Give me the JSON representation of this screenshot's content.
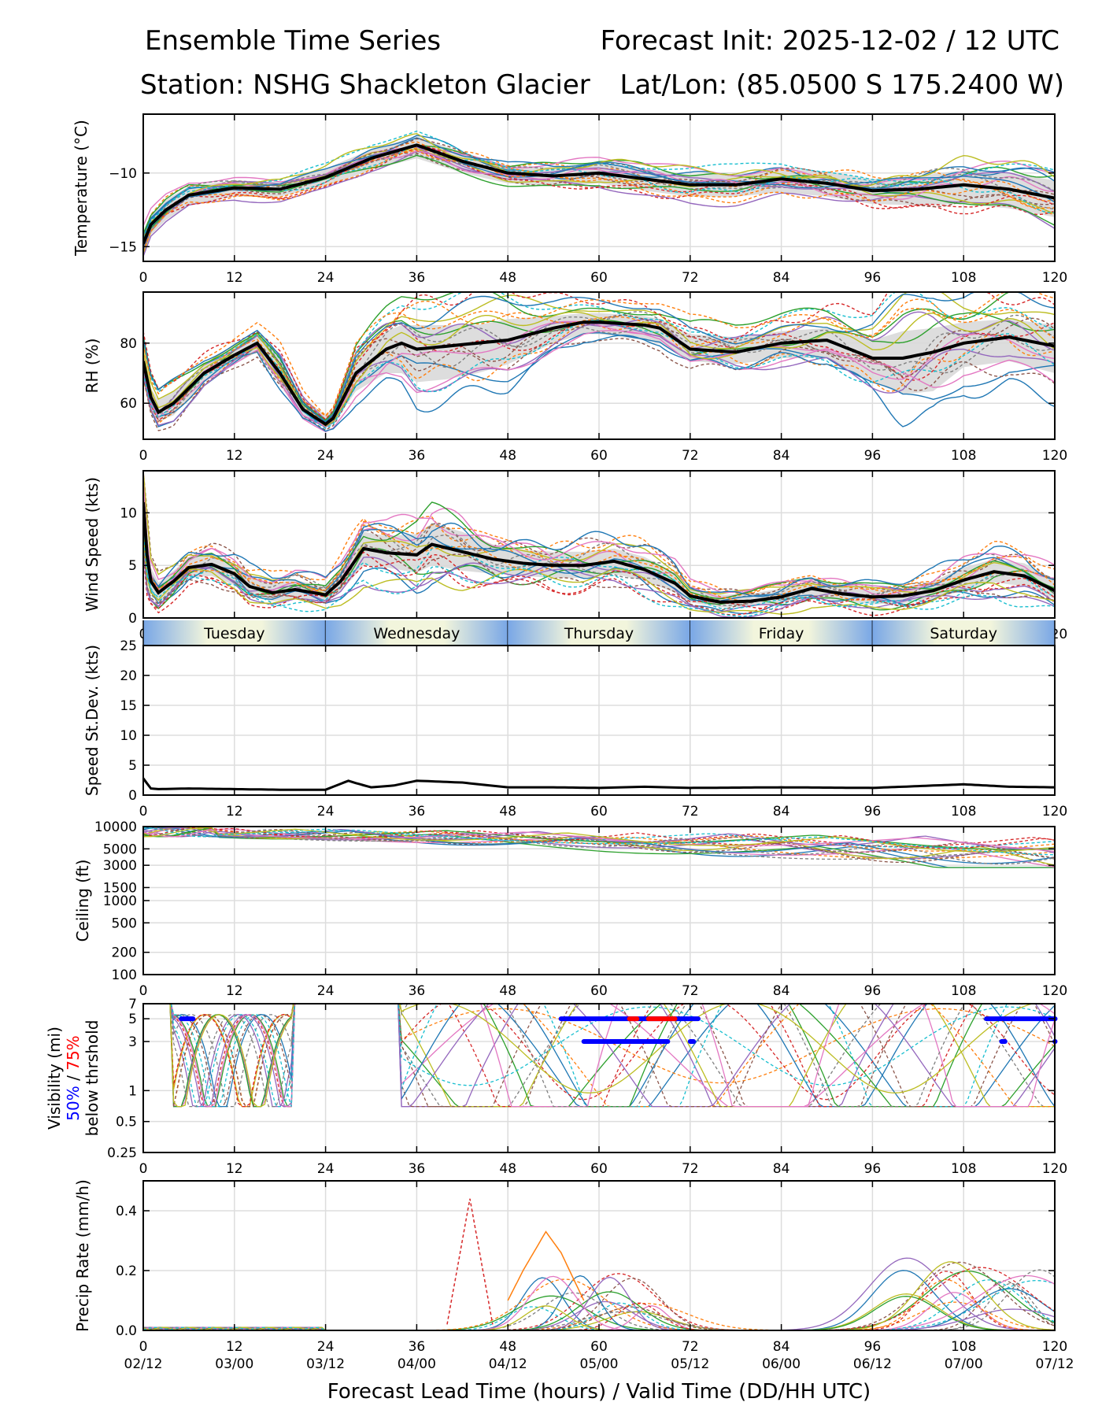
{
  "header": {
    "title_left": "Ensemble Time Series",
    "title_right": "Forecast Init: 2025-12-02 / 12 UTC",
    "station": "Station: NSHG Shackleton Glacier",
    "latlon": "Lat/Lon: (85.0500 S 175.2400 W)"
  },
  "colors": {
    "mean_line": "#000000",
    "spread_fill": "#d9d9d9",
    "grid": "#dddddd",
    "day_band_light": "#f2f5dc",
    "day_band_dark": "#79a7e6",
    "vis_50pct": "#0000ff",
    "vis_75pct": "#ff0000",
    "members": [
      "#1f77b4",
      "#ff7f0e",
      "#2ca02c",
      "#d62728",
      "#9467bd",
      "#8c564b",
      "#e377c2",
      "#7f7f7f",
      "#bcbd22",
      "#17becf"
    ]
  },
  "chart_data": [
    {
      "type": "line",
      "panel": "temperature",
      "ylabel": "Temperature (°C)",
      "ylim": [
        -16,
        -6
      ],
      "yticks": [
        -15,
        -10
      ],
      "x_hours": [
        0,
        1,
        3,
        6,
        12,
        18,
        24,
        30,
        36,
        42,
        48,
        54,
        60,
        66,
        72,
        78,
        84,
        90,
        96,
        102,
        108,
        114,
        120
      ],
      "ensemble_mean": [
        -14.8,
        -13.5,
        -12.5,
        -11.5,
        -11.0,
        -11.1,
        -10.3,
        -9.0,
        -8.1,
        -9.2,
        -10.0,
        -10.2,
        -10.0,
        -10.4,
        -10.8,
        -10.8,
        -10.4,
        -10.7,
        -11.2,
        -11.1,
        -10.8,
        -11.1,
        -11.7
      ],
      "spread_low": [
        -15.6,
        -14.2,
        -13.2,
        -12.2,
        -11.6,
        -11.6,
        -10.9,
        -9.8,
        -9.0,
        -10.0,
        -10.7,
        -10.9,
        -10.7,
        -11.2,
        -11.6,
        -11.6,
        -11.3,
        -11.6,
        -12.1,
        -12.2,
        -12.1,
        -12.4,
        -13.0
      ],
      "spread_high": [
        -14.0,
        -12.8,
        -11.8,
        -10.9,
        -10.5,
        -10.6,
        -9.7,
        -8.4,
        -7.5,
        -8.6,
        -9.5,
        -9.6,
        -9.3,
        -9.7,
        -10.1,
        -10.1,
        -9.7,
        -9.9,
        -10.4,
        -10.2,
        -9.8,
        -10.0,
        -10.5
      ]
    },
    {
      "type": "line",
      "panel": "relative_humidity",
      "ylabel": "RH (%)",
      "ylim": [
        48,
        97
      ],
      "yticks": [
        60,
        80
      ],
      "x_hours": [
        0,
        1,
        2,
        4,
        8,
        12,
        15,
        18,
        21,
        24,
        25,
        28,
        32,
        34,
        36,
        40,
        44,
        48,
        54,
        58,
        60,
        66,
        68,
        72,
        78,
        84,
        90,
        96,
        100,
        104,
        108,
        114,
        120
      ],
      "ensemble_mean": [
        74,
        62,
        57,
        60,
        70,
        76,
        80,
        70,
        58,
        53,
        55,
        70,
        78,
        80,
        78,
        79,
        80,
        81,
        85,
        87,
        87,
        86,
        85,
        78,
        77,
        80,
        81,
        75,
        75,
        77,
        80,
        82,
        79
      ],
      "spread_low": [
        70,
        58,
        54,
        56,
        67,
        73,
        77,
        66,
        55,
        52,
        53,
        64,
        70,
        70,
        67,
        68,
        70,
        73,
        80,
        83,
        83,
        81,
        80,
        74,
        73,
        75,
        75,
        67,
        63,
        64,
        72,
        74,
        70
      ],
      "spread_high": [
        78,
        65,
        61,
        64,
        73,
        79,
        83,
        75,
        62,
        56,
        58,
        76,
        84,
        86,
        86,
        86,
        86,
        88,
        89,
        90,
        90,
        89,
        88,
        83,
        82,
        84,
        85,
        81,
        84,
        85,
        87,
        88,
        86
      ]
    },
    {
      "type": "line",
      "panel": "wind_speed",
      "ylabel": "Wind Speed (kts)",
      "ylim": [
        0,
        14
      ],
      "yticks": [
        0,
        5,
        10
      ],
      "x_hours": [
        0,
        0.5,
        1,
        2,
        4,
        6,
        9,
        12,
        14,
        17,
        20,
        24,
        26,
        29,
        32,
        36,
        38,
        42,
        46,
        50,
        54,
        58,
        62,
        66,
        70,
        72,
        76,
        80,
        84,
        88,
        92,
        96,
        100,
        104,
        108,
        112,
        116,
        120
      ],
      "ensemble_mean": [
        11,
        6,
        3.5,
        2.4,
        3.5,
        4.8,
        5.1,
        4.2,
        3.0,
        2.4,
        2.7,
        2.2,
        3.5,
        6.6,
        6.2,
        6.0,
        7.0,
        6.3,
        5.6,
        5.2,
        5.0,
        5.0,
        5.4,
        4.6,
        3.3,
        2.1,
        1.5,
        1.6,
        2.0,
        2.8,
        2.3,
        2.0,
        2.1,
        2.6,
        3.6,
        4.4,
        4.0,
        2.6
      ],
      "spread_low": [
        8,
        4,
        2.5,
        1.5,
        2.6,
        3.8,
        4.0,
        3.1,
        2.0,
        1.6,
        1.8,
        1.5,
        2.5,
        5.0,
        4.8,
        4.3,
        5.0,
        4.5,
        4.2,
        4.0,
        3.8,
        3.8,
        4.2,
        3.5,
        2.4,
        1.5,
        1.0,
        1.1,
        1.4,
        2.0,
        1.6,
        1.3,
        1.4,
        1.8,
        2.6,
        3.4,
        3.0,
        1.8
      ],
      "spread_high": [
        13,
        8,
        4.8,
        3.4,
        4.5,
        5.8,
        6.2,
        5.2,
        4.0,
        3.3,
        3.6,
        3.0,
        4.6,
        8.2,
        7.8,
        8.0,
        9.0,
        8.2,
        7.0,
        6.5,
        6.3,
        6.3,
        6.6,
        5.8,
        4.3,
        2.8,
        2.2,
        2.3,
        2.8,
        3.6,
        3.2,
        2.8,
        2.9,
        3.5,
        4.8,
        5.6,
        5.2,
        3.6
      ]
    },
    {
      "type": "line",
      "panel": "speed_stdev",
      "ylabel": "Speed St.Dev. (kts)",
      "ylim": [
        0,
        25
      ],
      "yticks": [
        0,
        5,
        10,
        15,
        20,
        25
      ],
      "x_hours": [
        0,
        1,
        2,
        6,
        12,
        18,
        24,
        27,
        28,
        30,
        33,
        36,
        42,
        48,
        54,
        60,
        66,
        72,
        84,
        96,
        108,
        114,
        120
      ],
      "values": [
        2.8,
        1.1,
        1.0,
        1.1,
        1.0,
        0.9,
        0.9,
        2.4,
        2.0,
        1.3,
        1.6,
        2.4,
        2.1,
        1.3,
        1.3,
        1.2,
        1.4,
        1.2,
        1.3,
        1.2,
        1.8,
        1.4,
        1.3
      ]
    },
    {
      "type": "line",
      "panel": "ceiling",
      "ylabel": "Ceiling (ft)",
      "scale": "log",
      "ylim": [
        100,
        10000
      ],
      "yticks": [
        100,
        200,
        500,
        1000,
        1500,
        3000,
        5000,
        10000
      ]
    },
    {
      "type": "line",
      "panel": "visibility",
      "ylabel_lines": [
        "Visibility (mi)",
        "below thrshold"
      ],
      "ylabel_pct_50": "50%",
      "ylabel_pct_sep": " / ",
      "ylabel_pct_75": "75%",
      "scale": "log",
      "ylim": [
        0.25,
        7
      ],
      "yticks": [
        0.25,
        0.5,
        1,
        3,
        5,
        7
      ],
      "threshold_segments_50pct": [
        {
          "level": 5,
          "x_start": 5,
          "x_end": 6.5
        },
        {
          "level": 5,
          "x_start": 55,
          "x_end": 73
        },
        {
          "level": 3,
          "x_start": 58,
          "x_end": 69
        },
        {
          "level": 3,
          "x_start": 72,
          "x_end": 72.4
        },
        {
          "level": 5,
          "x_start": 111,
          "x_end": 120
        },
        {
          "level": 3,
          "x_start": 113,
          "x_end": 113.4
        },
        {
          "level": 3,
          "x_start": 120,
          "x_end": 120
        }
      ],
      "threshold_segments_75pct": [
        {
          "level": 5,
          "x_start": 64,
          "x_end": 65
        },
        {
          "level": 5,
          "x_start": 66.5,
          "x_end": 70
        }
      ]
    },
    {
      "type": "line",
      "panel": "precip_rate",
      "ylabel": "Precip Rate (mm/h)",
      "ylim": [
        0,
        0.5
      ],
      "yticks": [
        0.0,
        0.2,
        0.4
      ],
      "peak_member": {
        "x_hours": [
          40,
          42,
          43,
          44,
          46
        ],
        "values": [
          0.02,
          0.3,
          0.44,
          0.3,
          0.02
        ]
      },
      "secondary_member": {
        "x_hours": [
          48,
          50,
          53,
          55,
          58
        ],
        "values": [
          0.1,
          0.2,
          0.33,
          0.26,
          0.1
        ]
      }
    }
  ],
  "x_axis": {
    "ticks": [
      0,
      12,
      24,
      36,
      48,
      60,
      72,
      84,
      96,
      108,
      120
    ],
    "xlim": [
      0,
      120
    ],
    "valid_times": [
      "02/12",
      "03/00",
      "03/12",
      "04/00",
      "04/12",
      "05/00",
      "05/12",
      "06/00",
      "06/12",
      "07/00",
      "07/12"
    ],
    "xlabel": "Forecast Lead Time (hours) / Valid Time (DD/HH UTC)"
  },
  "day_band": [
    "Tuesday",
    "Wednesday",
    "Thursday",
    "Friday",
    "Saturday"
  ]
}
